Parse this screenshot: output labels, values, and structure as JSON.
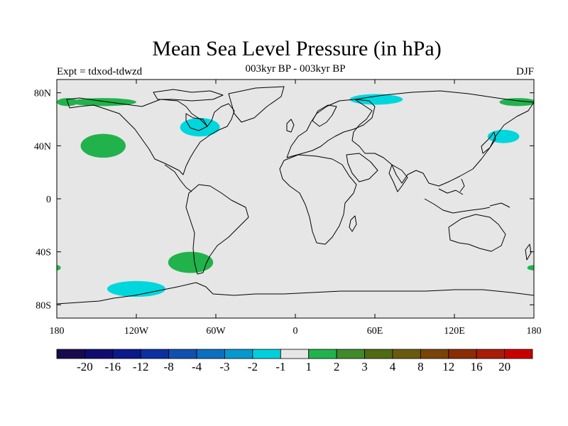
{
  "title": "Mean Sea Level Pressure (in hPa)",
  "subtitle": "003kyr BP - 003kyr BP",
  "left_label": "Expt = tdxod-tdwzd",
  "right_label": "DJF",
  "map": {
    "background_color": "#e6e6e6",
    "coast_color": "#000000",
    "lon_range": [
      -180,
      180
    ],
    "lat_range": [
      -90,
      90
    ],
    "x_ticks": [
      {
        "lon": -180,
        "label": "180"
      },
      {
        "lon": -120,
        "label": "120W"
      },
      {
        "lon": -60,
        "label": "60W"
      },
      {
        "lon": 0,
        "label": "0"
      },
      {
        "lon": 60,
        "label": "60E"
      },
      {
        "lon": 120,
        "label": "120E"
      },
      {
        "lon": 180,
        "label": "180"
      }
    ],
    "y_ticks": [
      {
        "lat": 80,
        "label": "80N"
      },
      {
        "lat": 40,
        "label": "40N"
      },
      {
        "lat": 0,
        "label": "0"
      },
      {
        "lat": -40,
        "label": "40S"
      },
      {
        "lat": -80,
        "label": "80S"
      }
    ],
    "anomalies": [
      {
        "name": "north-pacific-positive",
        "sign": "positive",
        "color": "#22b24c",
        "lon": -145,
        "lat": 40,
        "rlon": 17,
        "rlat": 9
      },
      {
        "name": "arctic-atlantic-positive",
        "sign": "positive",
        "color": "#22b24c",
        "lon": -145,
        "lat": 73,
        "rlon": 25,
        "rlat": 3
      },
      {
        "name": "arctic-dateline-positive-west",
        "sign": "positive",
        "color": "#22b24c",
        "lon": -172,
        "lat": 73,
        "rlon": 8,
        "rlat": 3
      },
      {
        "name": "arctic-east-positive",
        "sign": "positive",
        "color": "#22b24c",
        "lon": 168,
        "lat": 73,
        "rlon": 14,
        "rlat": 3
      },
      {
        "name": "south-pacific-positive",
        "sign": "positive",
        "color": "#22b24c",
        "lon": -79,
        "lat": -48,
        "rlon": 17,
        "rlat": 8
      },
      {
        "name": "south-west-edge-positive",
        "sign": "positive",
        "color": "#22b24c",
        "lon": -180,
        "lat": -52,
        "rlon": 3,
        "rlat": 2
      },
      {
        "name": "south-east-edge-positive",
        "sign": "positive",
        "color": "#22b24c",
        "lon": 180,
        "lat": -52,
        "rlon": 5,
        "rlat": 2
      },
      {
        "name": "hudson-bay-negative",
        "sign": "negative",
        "color": "#00d7dc",
        "lon": -72,
        "lat": 54,
        "rlon": 15,
        "rlat": 7
      },
      {
        "name": "arctic-siberia-negative",
        "sign": "negative",
        "color": "#00d7dc",
        "lon": 61,
        "lat": 75,
        "rlon": 20,
        "rlat": 4
      },
      {
        "name": "northwest-pacific-negative",
        "sign": "negative",
        "color": "#00d7dc",
        "lon": 157,
        "lat": 47,
        "rlon": 12,
        "rlat": 5
      },
      {
        "name": "southern-ocean-negative",
        "sign": "negative",
        "color": "#00d7dc",
        "lon": -120,
        "lat": -68,
        "rlon": 22,
        "rlat": 6
      }
    ]
  },
  "colorbar": {
    "colors": [
      "#1a0a4d",
      "#100c6f",
      "#0a1a8a",
      "#0c30a0",
      "#1050b0",
      "#0a70c0",
      "#0698cf",
      "#00d0dc",
      "#e6e6e6",
      "#22b24c",
      "#3f8a2a",
      "#506a14",
      "#6a5a10",
      "#7a4408",
      "#8a2c04",
      "#a81c08",
      "#c80000"
    ],
    "labels": [
      "-20",
      "-16",
      "-12",
      "-8",
      "-4",
      "-3",
      "-2",
      "-1",
      "1",
      "2",
      "3",
      "4",
      "8",
      "12",
      "16",
      "20"
    ]
  }
}
